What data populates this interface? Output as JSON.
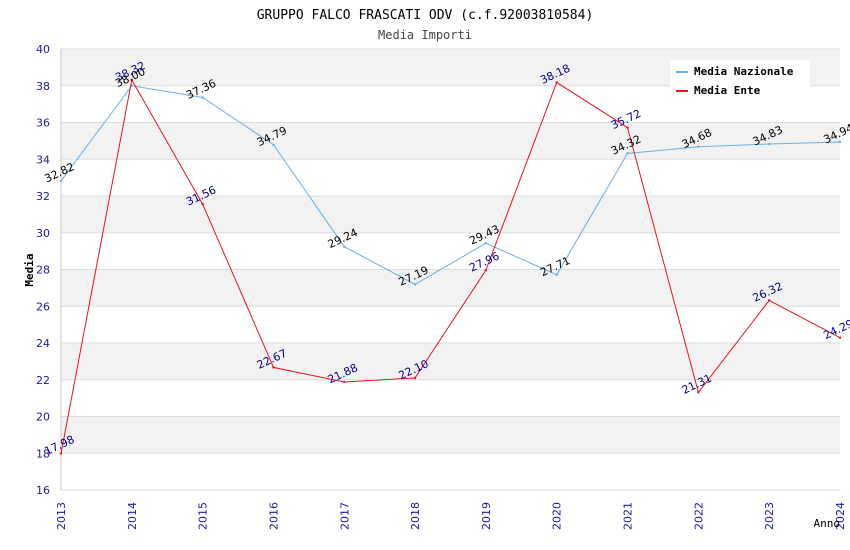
{
  "chart_data": {
    "type": "line",
    "title": "GRUPPO FALCO FRASCATI ODV (c.f.92003810584)",
    "subtitle": "Media Importi",
    "xlabel": "Anno",
    "ylabel": "Media",
    "ylim": [
      16,
      40
    ],
    "y_ticks": [
      16,
      18,
      20,
      22,
      24,
      26,
      28,
      30,
      32,
      34,
      36,
      38,
      40
    ],
    "categories": [
      "2013",
      "2014",
      "2015",
      "2016",
      "2017",
      "2018",
      "2019",
      "2020",
      "2021",
      "2022",
      "2023",
      "2024"
    ],
    "grid": true,
    "legend_position": "top-right",
    "series": [
      {
        "name": "Media Nazionale",
        "color": "#6aaee8",
        "label_color": "#000000",
        "values": [
          32.82,
          38.0,
          37.36,
          34.79,
          29.24,
          27.19,
          29.43,
          27.71,
          34.32,
          34.68,
          34.83,
          34.94
        ],
        "labels": [
          "32.82",
          "38.00",
          "37.36",
          "34.79",
          "29.24",
          "27.19",
          "29.43",
          "27.71",
          "34.32",
          "34.68",
          "34.83",
          "34.94"
        ]
      },
      {
        "name": "Media Ente",
        "color": "#e8141e",
        "label_color": "#00008b",
        "values": [
          17.98,
          38.32,
          31.56,
          22.67,
          21.88,
          22.1,
          27.96,
          38.18,
          35.72,
          21.31,
          26.32,
          24.29
        ],
        "labels": [
          "17.98",
          "38.32",
          "31.56",
          "22.67",
          "21.88",
          "22.10",
          "27.96",
          "38.18",
          "35.72",
          "21.31",
          "26.32",
          "24.29"
        ]
      }
    ]
  }
}
